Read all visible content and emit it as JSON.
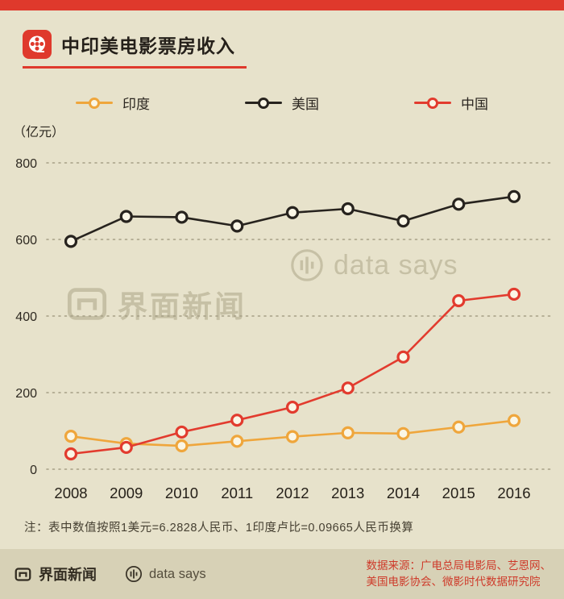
{
  "header": {
    "title": "中印美电影票房收入"
  },
  "colors": {
    "accent_red": "#df392c",
    "background": "#e7e2cb",
    "footer_background": "#d7d1b6",
    "grid": "#a69f86",
    "watermark": "#c6c0a5",
    "source_text_red": "#ce3a2a"
  },
  "chart_data": {
    "type": "line",
    "title": "中印美电影票房收入",
    "unit_label": "（亿元）",
    "categories": [
      "2008",
      "2009",
      "2010",
      "2011",
      "2012",
      "2013",
      "2014",
      "2015",
      "2016"
    ],
    "series": [
      {
        "name": "印度",
        "color": "#efa63c",
        "values": [
          86,
          67,
          61,
          73,
          85,
          95,
          93,
          110,
          127
        ]
      },
      {
        "name": "美国",
        "color": "#27231e",
        "values": [
          595,
          660,
          658,
          635,
          670,
          680,
          648,
          692,
          712
        ]
      },
      {
        "name": "中国",
        "color": "#e23b2e",
        "values": [
          40,
          57,
          97,
          128,
          162,
          212,
          293,
          440,
          457
        ]
      }
    ],
    "ylim": [
      0,
      800
    ],
    "yticks": [
      0,
      200,
      400,
      600,
      800
    ],
    "grid": "dotted-horizontal",
    "legend_position": "top"
  },
  "watermarks": {
    "jiemian": "界面新闻",
    "datasays": "data says"
  },
  "note": "注：表中数值按照1美元=6.2828人民币、1印度卢比=0.09665人民币换算",
  "footer": {
    "jiemian": "界面新闻",
    "datasays": "data says",
    "source_line1": "数据来源：广电总局电影局、艺恩网、",
    "source_line2": "美国电影协会、微影时代数据研究院"
  }
}
